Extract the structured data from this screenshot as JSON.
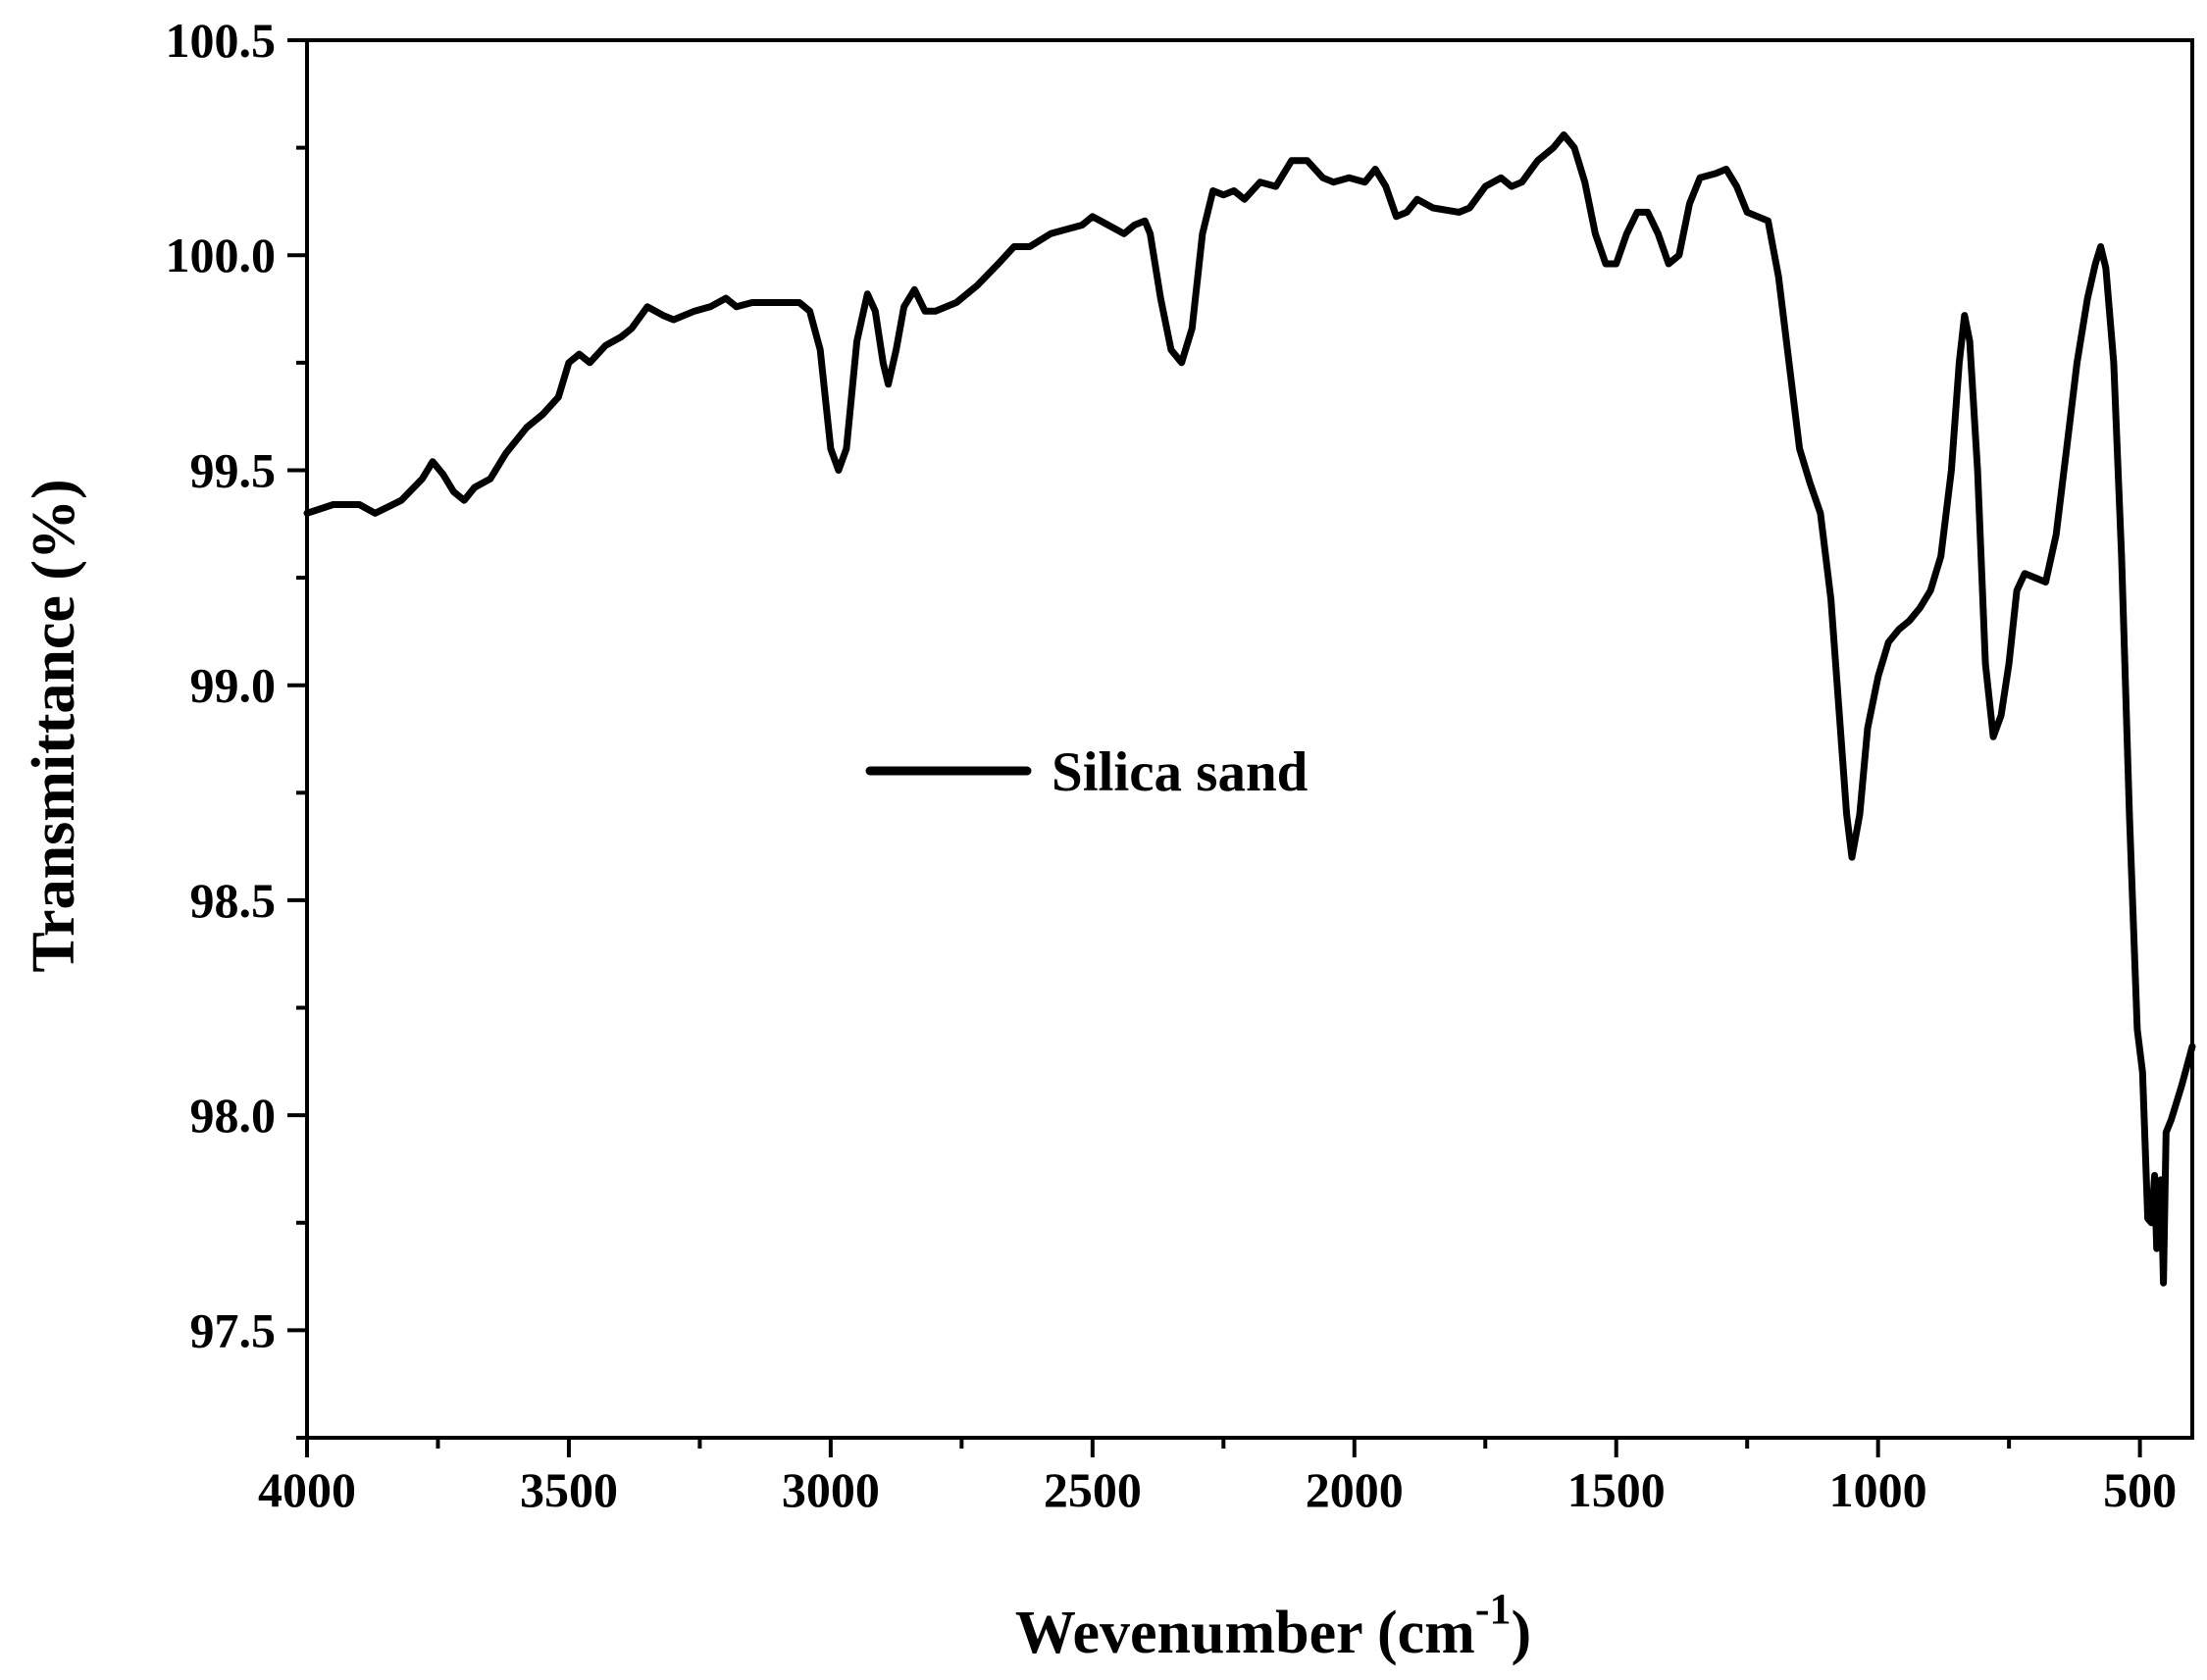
{
  "chart_data": {
    "type": "line",
    "xlabel": "Wevenumber (cm",
    "xlabel_superscript": "-1",
    "xlabel_suffix": ")",
    "ylabel": "Transmittance (%)",
    "xlim": [
      4000,
      400
    ],
    "ylim": [
      97.25,
      100.5
    ],
    "x_reversed": true,
    "grid": false,
    "legend_placement": "center-left",
    "x_ticks": [
      4000,
      3500,
      3000,
      2500,
      2000,
      1500,
      1000,
      500
    ],
    "x_tick_labels": [
      "4000",
      "3500",
      "3000",
      "2500",
      "2000",
      "1500",
      "1000",
      "500"
    ],
    "y_ticks": [
      97.5,
      98.0,
      98.5,
      99.0,
      99.5,
      100.0,
      100.5
    ],
    "y_tick_labels": [
      "97.5",
      "98.0",
      "98.5",
      "99.0",
      "99.5",
      "100.0",
      "100.5"
    ],
    "line_color": "#000000",
    "series": [
      {
        "name": "Silica sand",
        "points": [
          [
            4000,
            99.4
          ],
          [
            3950,
            99.42
          ],
          [
            3900,
            99.42
          ],
          [
            3870,
            99.4
          ],
          [
            3820,
            99.43
          ],
          [
            3780,
            99.48
          ],
          [
            3760,
            99.52
          ],
          [
            3740,
            99.49
          ],
          [
            3720,
            99.45
          ],
          [
            3700,
            99.43
          ],
          [
            3680,
            99.46
          ],
          [
            3650,
            99.48
          ],
          [
            3620,
            99.54
          ],
          [
            3580,
            99.6
          ],
          [
            3550,
            99.63
          ],
          [
            3520,
            99.67
          ],
          [
            3500,
            99.75
          ],
          [
            3480,
            99.77
          ],
          [
            3460,
            99.75
          ],
          [
            3430,
            99.79
          ],
          [
            3400,
            99.81
          ],
          [
            3380,
            99.83
          ],
          [
            3350,
            99.88
          ],
          [
            3320,
            99.86
          ],
          [
            3300,
            99.85
          ],
          [
            3260,
            99.87
          ],
          [
            3230,
            99.88
          ],
          [
            3200,
            99.9
          ],
          [
            3180,
            99.88
          ],
          [
            3150,
            99.89
          ],
          [
            3100,
            99.89
          ],
          [
            3060,
            99.89
          ],
          [
            3040,
            99.87
          ],
          [
            3020,
            99.78
          ],
          [
            3000,
            99.55
          ],
          [
            2985,
            99.5
          ],
          [
            2970,
            99.55
          ],
          [
            2950,
            99.8
          ],
          [
            2930,
            99.91
          ],
          [
            2915,
            99.87
          ],
          [
            2900,
            99.75
          ],
          [
            2890,
            99.7
          ],
          [
            2875,
            99.78
          ],
          [
            2860,
            99.88
          ],
          [
            2840,
            99.92
          ],
          [
            2820,
            99.87
          ],
          [
            2800,
            99.87
          ],
          [
            2760,
            99.89
          ],
          [
            2720,
            99.93
          ],
          [
            2680,
            99.98
          ],
          [
            2650,
            100.02
          ],
          [
            2620,
            100.02
          ],
          [
            2580,
            100.05
          ],
          [
            2550,
            100.06
          ],
          [
            2520,
            100.07
          ],
          [
            2500,
            100.09
          ],
          [
            2470,
            100.07
          ],
          [
            2440,
            100.05
          ],
          [
            2420,
            100.07
          ],
          [
            2400,
            100.08
          ],
          [
            2390,
            100.05
          ],
          [
            2370,
            99.9
          ],
          [
            2350,
            99.78
          ],
          [
            2330,
            99.75
          ],
          [
            2310,
            99.83
          ],
          [
            2290,
            100.05
          ],
          [
            2270,
            100.15
          ],
          [
            2250,
            100.14
          ],
          [
            2230,
            100.15
          ],
          [
            2210,
            100.13
          ],
          [
            2180,
            100.17
          ],
          [
            2150,
            100.16
          ],
          [
            2120,
            100.22
          ],
          [
            2090,
            100.22
          ],
          [
            2060,
            100.18
          ],
          [
            2040,
            100.17
          ],
          [
            2010,
            100.18
          ],
          [
            1980,
            100.17
          ],
          [
            1960,
            100.2
          ],
          [
            1940,
            100.16
          ],
          [
            1920,
            100.09
          ],
          [
            1900,
            100.1
          ],
          [
            1880,
            100.13
          ],
          [
            1850,
            100.11
          ],
          [
            1800,
            100.1
          ],
          [
            1780,
            100.11
          ],
          [
            1750,
            100.16
          ],
          [
            1720,
            100.18
          ],
          [
            1700,
            100.16
          ],
          [
            1680,
            100.17
          ],
          [
            1650,
            100.22
          ],
          [
            1620,
            100.25
          ],
          [
            1600,
            100.28
          ],
          [
            1580,
            100.25
          ],
          [
            1560,
            100.17
          ],
          [
            1540,
            100.05
          ],
          [
            1520,
            99.98
          ],
          [
            1500,
            99.98
          ],
          [
            1480,
            100.05
          ],
          [
            1460,
            100.1
          ],
          [
            1440,
            100.1
          ],
          [
            1420,
            100.05
          ],
          [
            1400,
            99.98
          ],
          [
            1380,
            100.0
          ],
          [
            1360,
            100.12
          ],
          [
            1340,
            100.18
          ],
          [
            1310,
            100.19
          ],
          [
            1290,
            100.2
          ],
          [
            1270,
            100.16
          ],
          [
            1250,
            100.1
          ],
          [
            1230,
            100.09
          ],
          [
            1210,
            100.08
          ],
          [
            1190,
            99.95
          ],
          [
            1170,
            99.75
          ],
          [
            1150,
            99.55
          ],
          [
            1130,
            99.47
          ],
          [
            1110,
            99.4
          ],
          [
            1090,
            99.2
          ],
          [
            1075,
            98.95
          ],
          [
            1060,
            98.7
          ],
          [
            1050,
            98.6
          ],
          [
            1035,
            98.7
          ],
          [
            1020,
            98.9
          ],
          [
            1000,
            99.02
          ],
          [
            980,
            99.1
          ],
          [
            960,
            99.13
          ],
          [
            940,
            99.15
          ],
          [
            920,
            99.18
          ],
          [
            900,
            99.22
          ],
          [
            880,
            99.3
          ],
          [
            860,
            99.5
          ],
          [
            845,
            99.75
          ],
          [
            835,
            99.86
          ],
          [
            825,
            99.8
          ],
          [
            810,
            99.5
          ],
          [
            795,
            99.05
          ],
          [
            780,
            98.88
          ],
          [
            765,
            98.93
          ],
          [
            750,
            99.05
          ],
          [
            735,
            99.22
          ],
          [
            720,
            99.26
          ],
          [
            700,
            99.25
          ],
          [
            680,
            99.24
          ],
          [
            660,
            99.35
          ],
          [
            640,
            99.55
          ],
          [
            620,
            99.75
          ],
          [
            600,
            99.9
          ],
          [
            585,
            99.98
          ],
          [
            575,
            100.02
          ],
          [
            565,
            99.97
          ],
          [
            550,
            99.75
          ],
          [
            535,
            99.3
          ],
          [
            520,
            98.7
          ],
          [
            505,
            98.2
          ],
          [
            495,
            98.1
          ],
          [
            485,
            97.76
          ],
          [
            478,
            97.75
          ],
          [
            472,
            97.86
          ],
          [
            468,
            97.69
          ],
          [
            465,
            97.76
          ],
          [
            460,
            97.85
          ],
          [
            455,
            97.61
          ],
          [
            450,
            97.96
          ],
          [
            440,
            97.99
          ],
          [
            420,
            98.07
          ],
          [
            400,
            98.16
          ]
        ]
      }
    ]
  }
}
